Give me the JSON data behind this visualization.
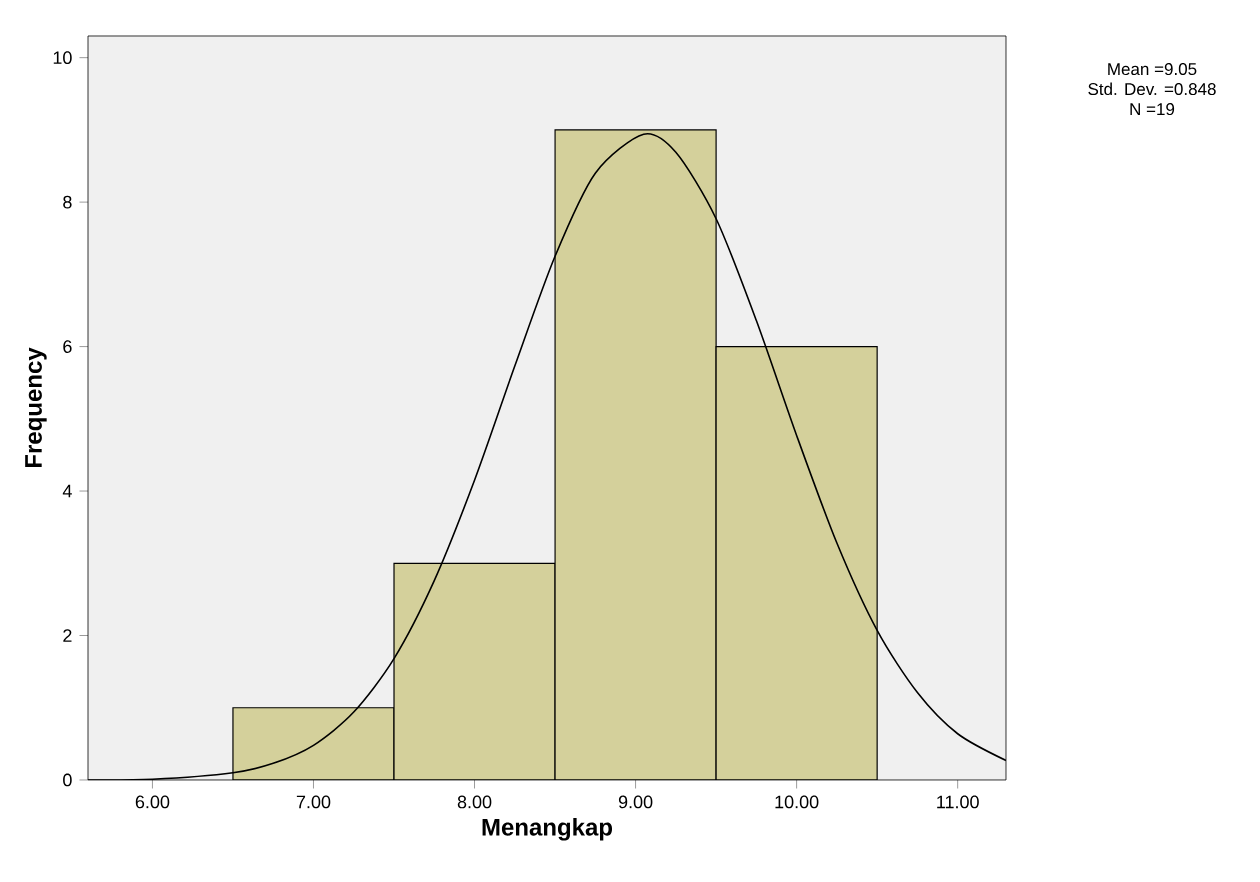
{
  "chart_data": {
    "type": "histogram",
    "xlabel": "Menangkap",
    "ylabel": "Frequency",
    "series": [
      {
        "color": "#d4d09b",
        "bins": [
          6.5,
          7.5,
          8.5,
          9.5,
          10.5
        ],
        "values": [
          1,
          3,
          9,
          6
        ]
      },
      {
        "type": "line",
        "color": "#000000",
        "x": [
          5.6,
          6.0,
          6.5,
          6.75,
          7.0,
          7.25,
          7.5,
          7.75,
          8.0,
          8.25,
          8.5,
          8.75,
          9.05,
          9.25,
          9.5,
          9.75,
          10.0,
          10.25,
          10.5,
          10.75,
          11.0,
          11.3
        ],
        "values": [
          0.0,
          0.01,
          0.1,
          0.23,
          0.48,
          0.94,
          1.68,
          2.76,
          4.15,
          5.73,
          7.25,
          8.4,
          8.94,
          8.69,
          7.77,
          6.36,
          4.77,
          3.28,
          2.07,
          1.21,
          0.64,
          0.27
        ]
      }
    ],
    "xlim": [
      5.6,
      11.3
    ],
    "ylim": [
      0,
      10.3
    ],
    "xticks": [
      {
        "value": 6,
        "label": "6.00"
      },
      {
        "value": 7,
        "label": "7.00"
      },
      {
        "value": 8,
        "label": "8.00"
      },
      {
        "value": 9,
        "label": "9.00"
      },
      {
        "value": 10,
        "label": "10.00"
      },
      {
        "value": 11,
        "label": "11.00"
      }
    ],
    "yticks": [
      0,
      2,
      4,
      6,
      8,
      10
    ],
    "annotations": [
      "Mean =9.05",
      "Std. Dev. =0.848",
      "N =19"
    ],
    "grid": false
  }
}
